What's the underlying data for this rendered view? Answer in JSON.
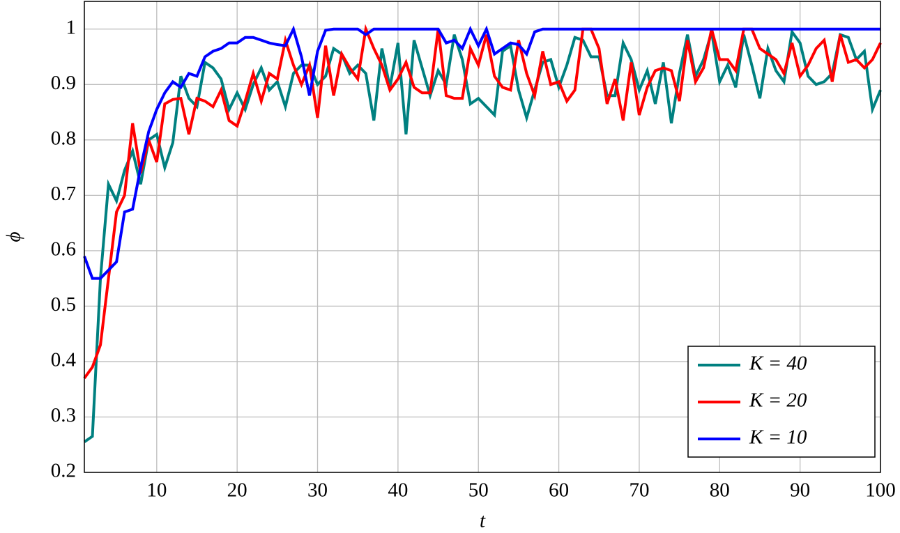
{
  "chart_data": {
    "type": "line",
    "xlabel": "t",
    "ylabel": "ϕ",
    "x": [
      1,
      2,
      3,
      4,
      5,
      6,
      7,
      8,
      9,
      10,
      11,
      12,
      13,
      14,
      15,
      16,
      17,
      18,
      19,
      20,
      21,
      22,
      23,
      24,
      25,
      26,
      27,
      28,
      29,
      30,
      31,
      32,
      33,
      34,
      35,
      36,
      37,
      38,
      39,
      40,
      41,
      42,
      43,
      44,
      45,
      46,
      47,
      48,
      49,
      50,
      51,
      52,
      53,
      54,
      55,
      56,
      57,
      58,
      59,
      60,
      61,
      62,
      63,
      64,
      65,
      66,
      67,
      68,
      69,
      70,
      71,
      72,
      73,
      74,
      75,
      76,
      77,
      78,
      79,
      80,
      81,
      82,
      83,
      84,
      85,
      86,
      87,
      88,
      89,
      90,
      91,
      92,
      93,
      94,
      95,
      96,
      97,
      98,
      99,
      100
    ],
    "series": [
      {
        "name": "K = 40",
        "color": "#008080",
        "values": [
          0.255,
          0.265,
          0.55,
          0.72,
          0.69,
          0.745,
          0.78,
          0.72,
          0.8,
          0.81,
          0.75,
          0.795,
          0.915,
          0.875,
          0.86,
          0.94,
          0.93,
          0.91,
          0.855,
          0.885,
          0.855,
          0.9,
          0.93,
          0.89,
          0.905,
          0.86,
          0.92,
          0.935,
          0.935,
          0.9,
          0.915,
          0.965,
          0.955,
          0.92,
          0.935,
          0.92,
          0.835,
          0.965,
          0.895,
          0.975,
          0.81,
          0.98,
          0.93,
          0.88,
          0.925,
          0.9,
          0.99,
          0.945,
          0.865,
          0.875,
          0.86,
          0.845,
          0.96,
          0.97,
          0.89,
          0.84,
          0.89,
          0.94,
          0.945,
          0.895,
          0.935,
          0.985,
          0.98,
          0.95,
          0.95,
          0.88,
          0.88,
          0.975,
          0.945,
          0.89,
          0.925,
          0.865,
          0.94,
          0.83,
          0.92,
          0.99,
          0.915,
          0.945,
          0.995,
          0.905,
          0.935,
          0.895,
          0.99,
          0.935,
          0.875,
          0.965,
          0.925,
          0.905,
          0.995,
          0.975,
          0.915,
          0.9,
          0.905,
          0.92,
          0.99,
          0.985,
          0.945,
          0.96,
          0.855,
          0.89
        ]
      },
      {
        "name": "K = 20",
        "color": "#ff0000",
        "values": [
          0.37,
          0.39,
          0.43,
          0.55,
          0.67,
          0.7,
          0.83,
          0.74,
          0.8,
          0.76,
          0.865,
          0.873,
          0.875,
          0.81,
          0.875,
          0.87,
          0.86,
          0.89,
          0.835,
          0.825,
          0.87,
          0.92,
          0.87,
          0.92,
          0.91,
          0.98,
          0.935,
          0.9,
          0.935,
          0.84,
          0.97,
          0.88,
          0.955,
          0.93,
          0.91,
          1.0,
          0.965,
          0.935,
          0.89,
          0.91,
          0.94,
          0.895,
          0.885,
          0.885,
          1.0,
          0.88,
          0.875,
          0.875,
          0.965,
          0.935,
          0.99,
          0.915,
          0.895,
          0.89,
          0.98,
          0.92,
          0.88,
          0.96,
          0.9,
          0.905,
          0.87,
          0.89,
          1.0,
          1.0,
          0.965,
          0.865,
          0.91,
          0.835,
          0.94,
          0.845,
          0.895,
          0.925,
          0.93,
          0.925,
          0.87,
          0.98,
          0.905,
          0.93,
          1.0,
          0.945,
          0.945,
          0.925,
          1.0,
          1.0,
          0.965,
          0.955,
          0.945,
          0.92,
          0.975,
          0.915,
          0.935,
          0.965,
          0.98,
          0.905,
          0.99,
          0.94,
          0.945,
          0.93,
          0.945,
          0.975
        ]
      },
      {
        "name": "K = 10",
        "color": "#0000ff",
        "values": [
          0.59,
          0.55,
          0.55,
          0.565,
          0.58,
          0.67,
          0.675,
          0.75,
          0.815,
          0.855,
          0.885,
          0.905,
          0.895,
          0.92,
          0.915,
          0.95,
          0.96,
          0.965,
          0.975,
          0.975,
          0.985,
          0.985,
          0.98,
          0.975,
          0.972,
          0.97,
          1.0,
          0.95,
          0.88,
          0.96,
          0.998,
          1.0,
          1.0,
          1.0,
          1.0,
          0.99,
          1.0,
          1.0,
          1.0,
          1.0,
          1.0,
          1.0,
          1.0,
          1.0,
          1.0,
          0.975,
          0.98,
          0.965,
          1.0,
          0.97,
          1.0,
          0.955,
          0.965,
          0.975,
          0.972,
          0.955,
          0.995,
          1.0,
          1.0,
          1.0,
          1.0,
          1.0,
          1.0,
          1.0,
          1.0,
          1.0,
          1.0,
          1.0,
          1.0,
          1.0,
          1.0,
          1.0,
          1.0,
          1.0,
          1.0,
          1.0,
          1.0,
          1.0,
          1.0,
          1.0,
          1.0,
          1.0,
          1.0,
          1.0,
          1.0,
          1.0,
          1.0,
          1.0,
          1.0,
          1.0,
          1.0,
          1.0,
          1.0,
          1.0,
          1.0,
          1.0,
          1.0,
          1.0,
          1.0,
          1.0
        ]
      }
    ],
    "xlim": [
      1,
      100
    ],
    "xticks": [
      10,
      20,
      30,
      40,
      50,
      60,
      70,
      80,
      90,
      100
    ],
    "ylim": [
      0.2,
      1.05
    ],
    "yticks": [
      0.2,
      0.3,
      0.4,
      0.5,
      0.6,
      0.7,
      0.8,
      0.9,
      1
    ],
    "grid": true,
    "legend_position": "lower right"
  }
}
